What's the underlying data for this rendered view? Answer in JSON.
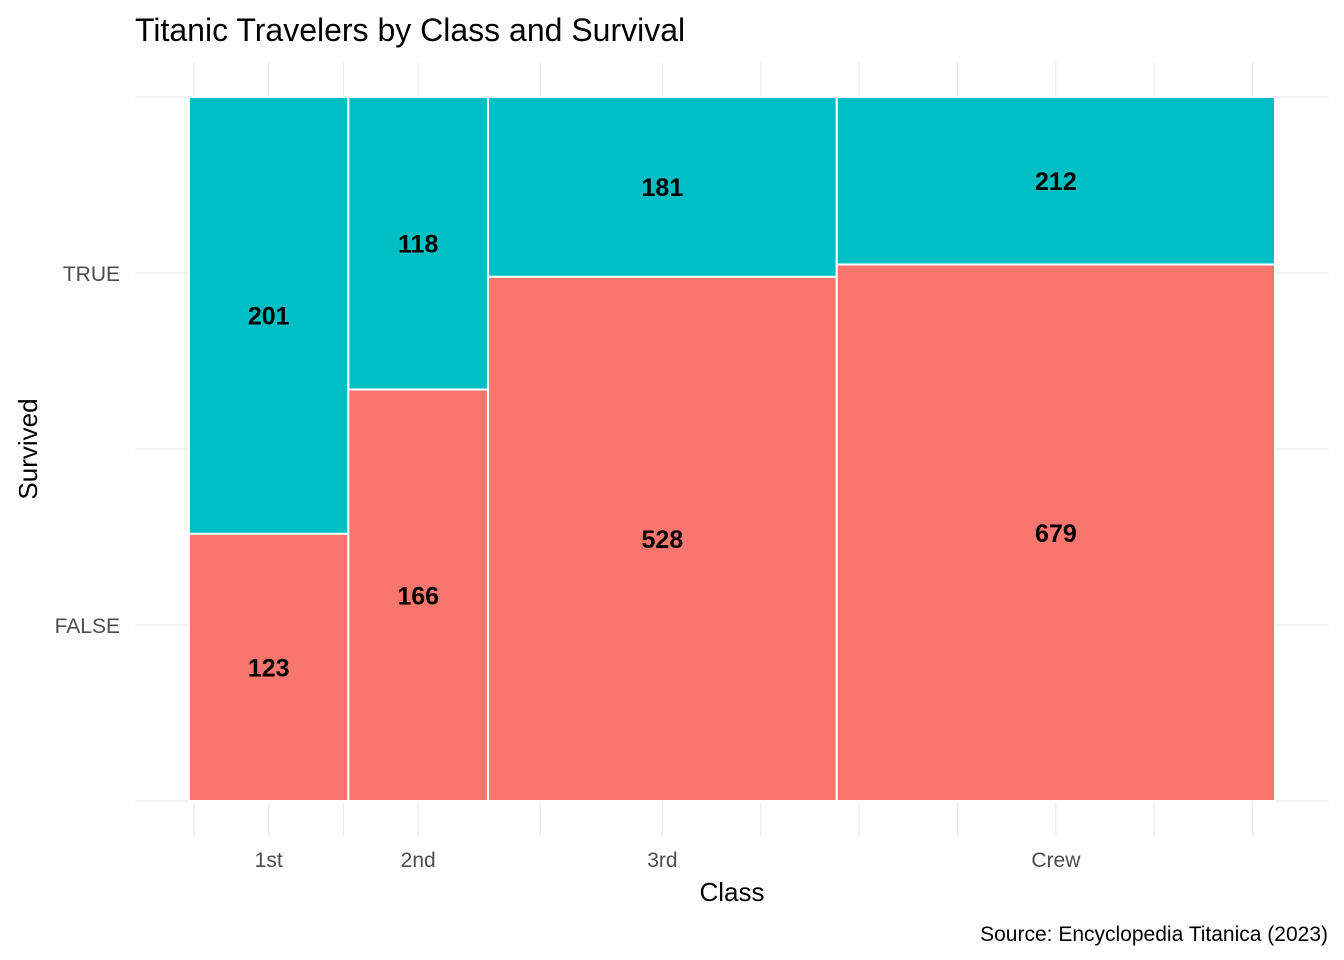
{
  "chart_data": {
    "type": "mosaic",
    "title": "Titanic Travelers by Class and Survival",
    "caption": "Source: Encyclopedia Titanica (2023)",
    "xlabel": "Class",
    "ylabel": "Survived",
    "categories": [
      "1st",
      "2nd",
      "3rd",
      "Crew"
    ],
    "y_levels": [
      "FALSE",
      "TRUE"
    ],
    "series": [
      {
        "name": "FALSE",
        "values": [
          123,
          166,
          528,
          679
        ],
        "color": "#F8766D"
      },
      {
        "name": "TRUE",
        "values": [
          201,
          118,
          181,
          212
        ],
        "color": "#00BFC4"
      }
    ],
    "grid": true,
    "legend": "none"
  }
}
